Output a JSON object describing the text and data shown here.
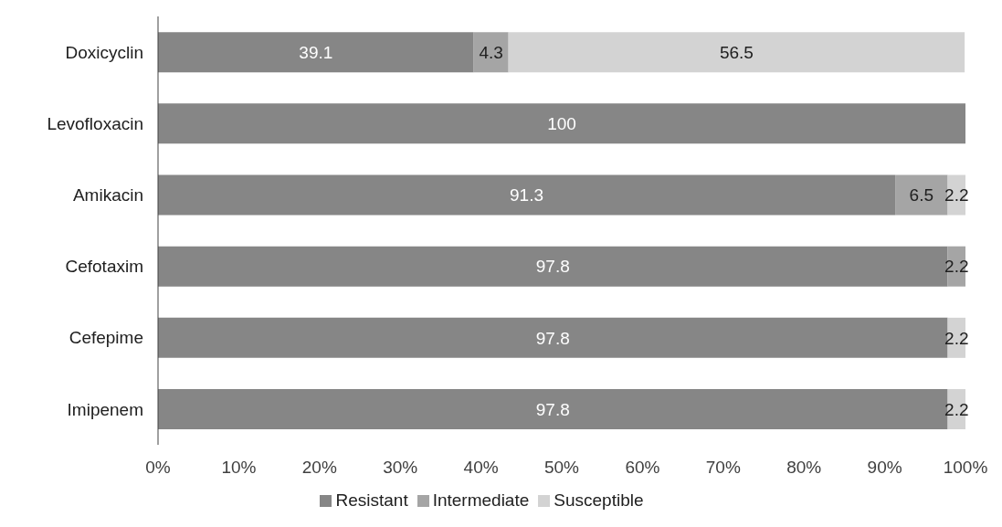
{
  "chart_data": {
    "type": "bar",
    "orientation": "horizontal",
    "stacked": true,
    "categories": [
      "Doxicyclin",
      "Levofloxacin",
      "Amikacin",
      "Cefotaxim",
      "Cefepime",
      "Imipenem"
    ],
    "series": [
      {
        "name": "Resistant",
        "color": "#868686",
        "values": [
          39.1,
          100,
          91.3,
          97.8,
          97.8,
          97.8
        ]
      },
      {
        "name": "Intermediate",
        "color": "#a5a5a5",
        "values": [
          4.3,
          null,
          6.5,
          2.2,
          null,
          null
        ]
      },
      {
        "name": "Susceptible",
        "color": "#d3d3d3",
        "values": [
          56.5,
          null,
          2.2,
          null,
          2.2,
          2.2
        ]
      }
    ],
    "xlim": [
      0,
      100
    ],
    "xticks": [
      {
        "value": 0,
        "label": "0%"
      },
      {
        "value": 10,
        "label": "10%"
      },
      {
        "value": 20,
        "label": "20%"
      },
      {
        "value": 30,
        "label": "30%"
      },
      {
        "value": 40,
        "label": "40%"
      },
      {
        "value": 50,
        "label": "50%"
      },
      {
        "value": 60,
        "label": "60%"
      },
      {
        "value": 70,
        "label": "70%"
      },
      {
        "value": 80,
        "label": "80%"
      },
      {
        "value": 90,
        "label": "90%"
      },
      {
        "value": 100,
        "label": "100%"
      }
    ],
    "data_labels": true,
    "grid": false,
    "legend": "bottom"
  }
}
